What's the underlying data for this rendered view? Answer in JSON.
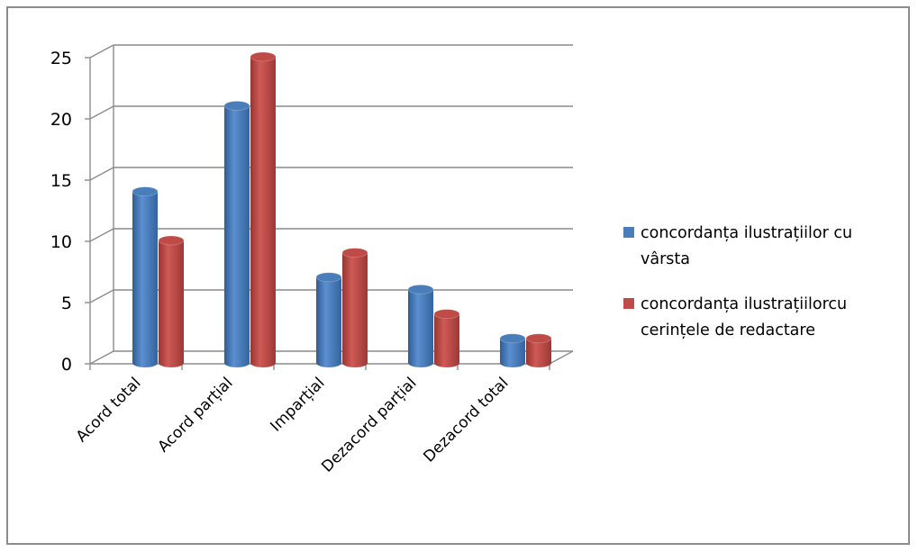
{
  "chart_data": {
    "type": "bar",
    "style": "3d-clustered-cylinder",
    "categories": [
      "Acord total",
      "Acord parțial",
      "Imparțial",
      "Dezacord parțial",
      "Dezacord total"
    ],
    "series": [
      {
        "name": "concordanța ilustrațiilor cu vârsta",
        "legend_lines": [
          "concordanța ilustrațiilor cu",
          "vârsta"
        ],
        "color": "#4a7ebb",
        "values": [
          14,
          21,
          7,
          6,
          2
        ]
      },
      {
        "name": "concordanța ilustrațiilorcu cerințele de redactare",
        "legend_lines": [
          "concordanța ilustrațiilorcu",
          "cerințele de redactare"
        ],
        "color": "#be4b48",
        "values": [
          10,
          25,
          9,
          4,
          2
        ]
      }
    ],
    "yticks": [
      0,
      5,
      10,
      15,
      20,
      25
    ],
    "ylim": [
      0,
      25
    ],
    "grid": true,
    "legend_position": "right",
    "title": "",
    "xlabel": "",
    "ylabel": ""
  }
}
